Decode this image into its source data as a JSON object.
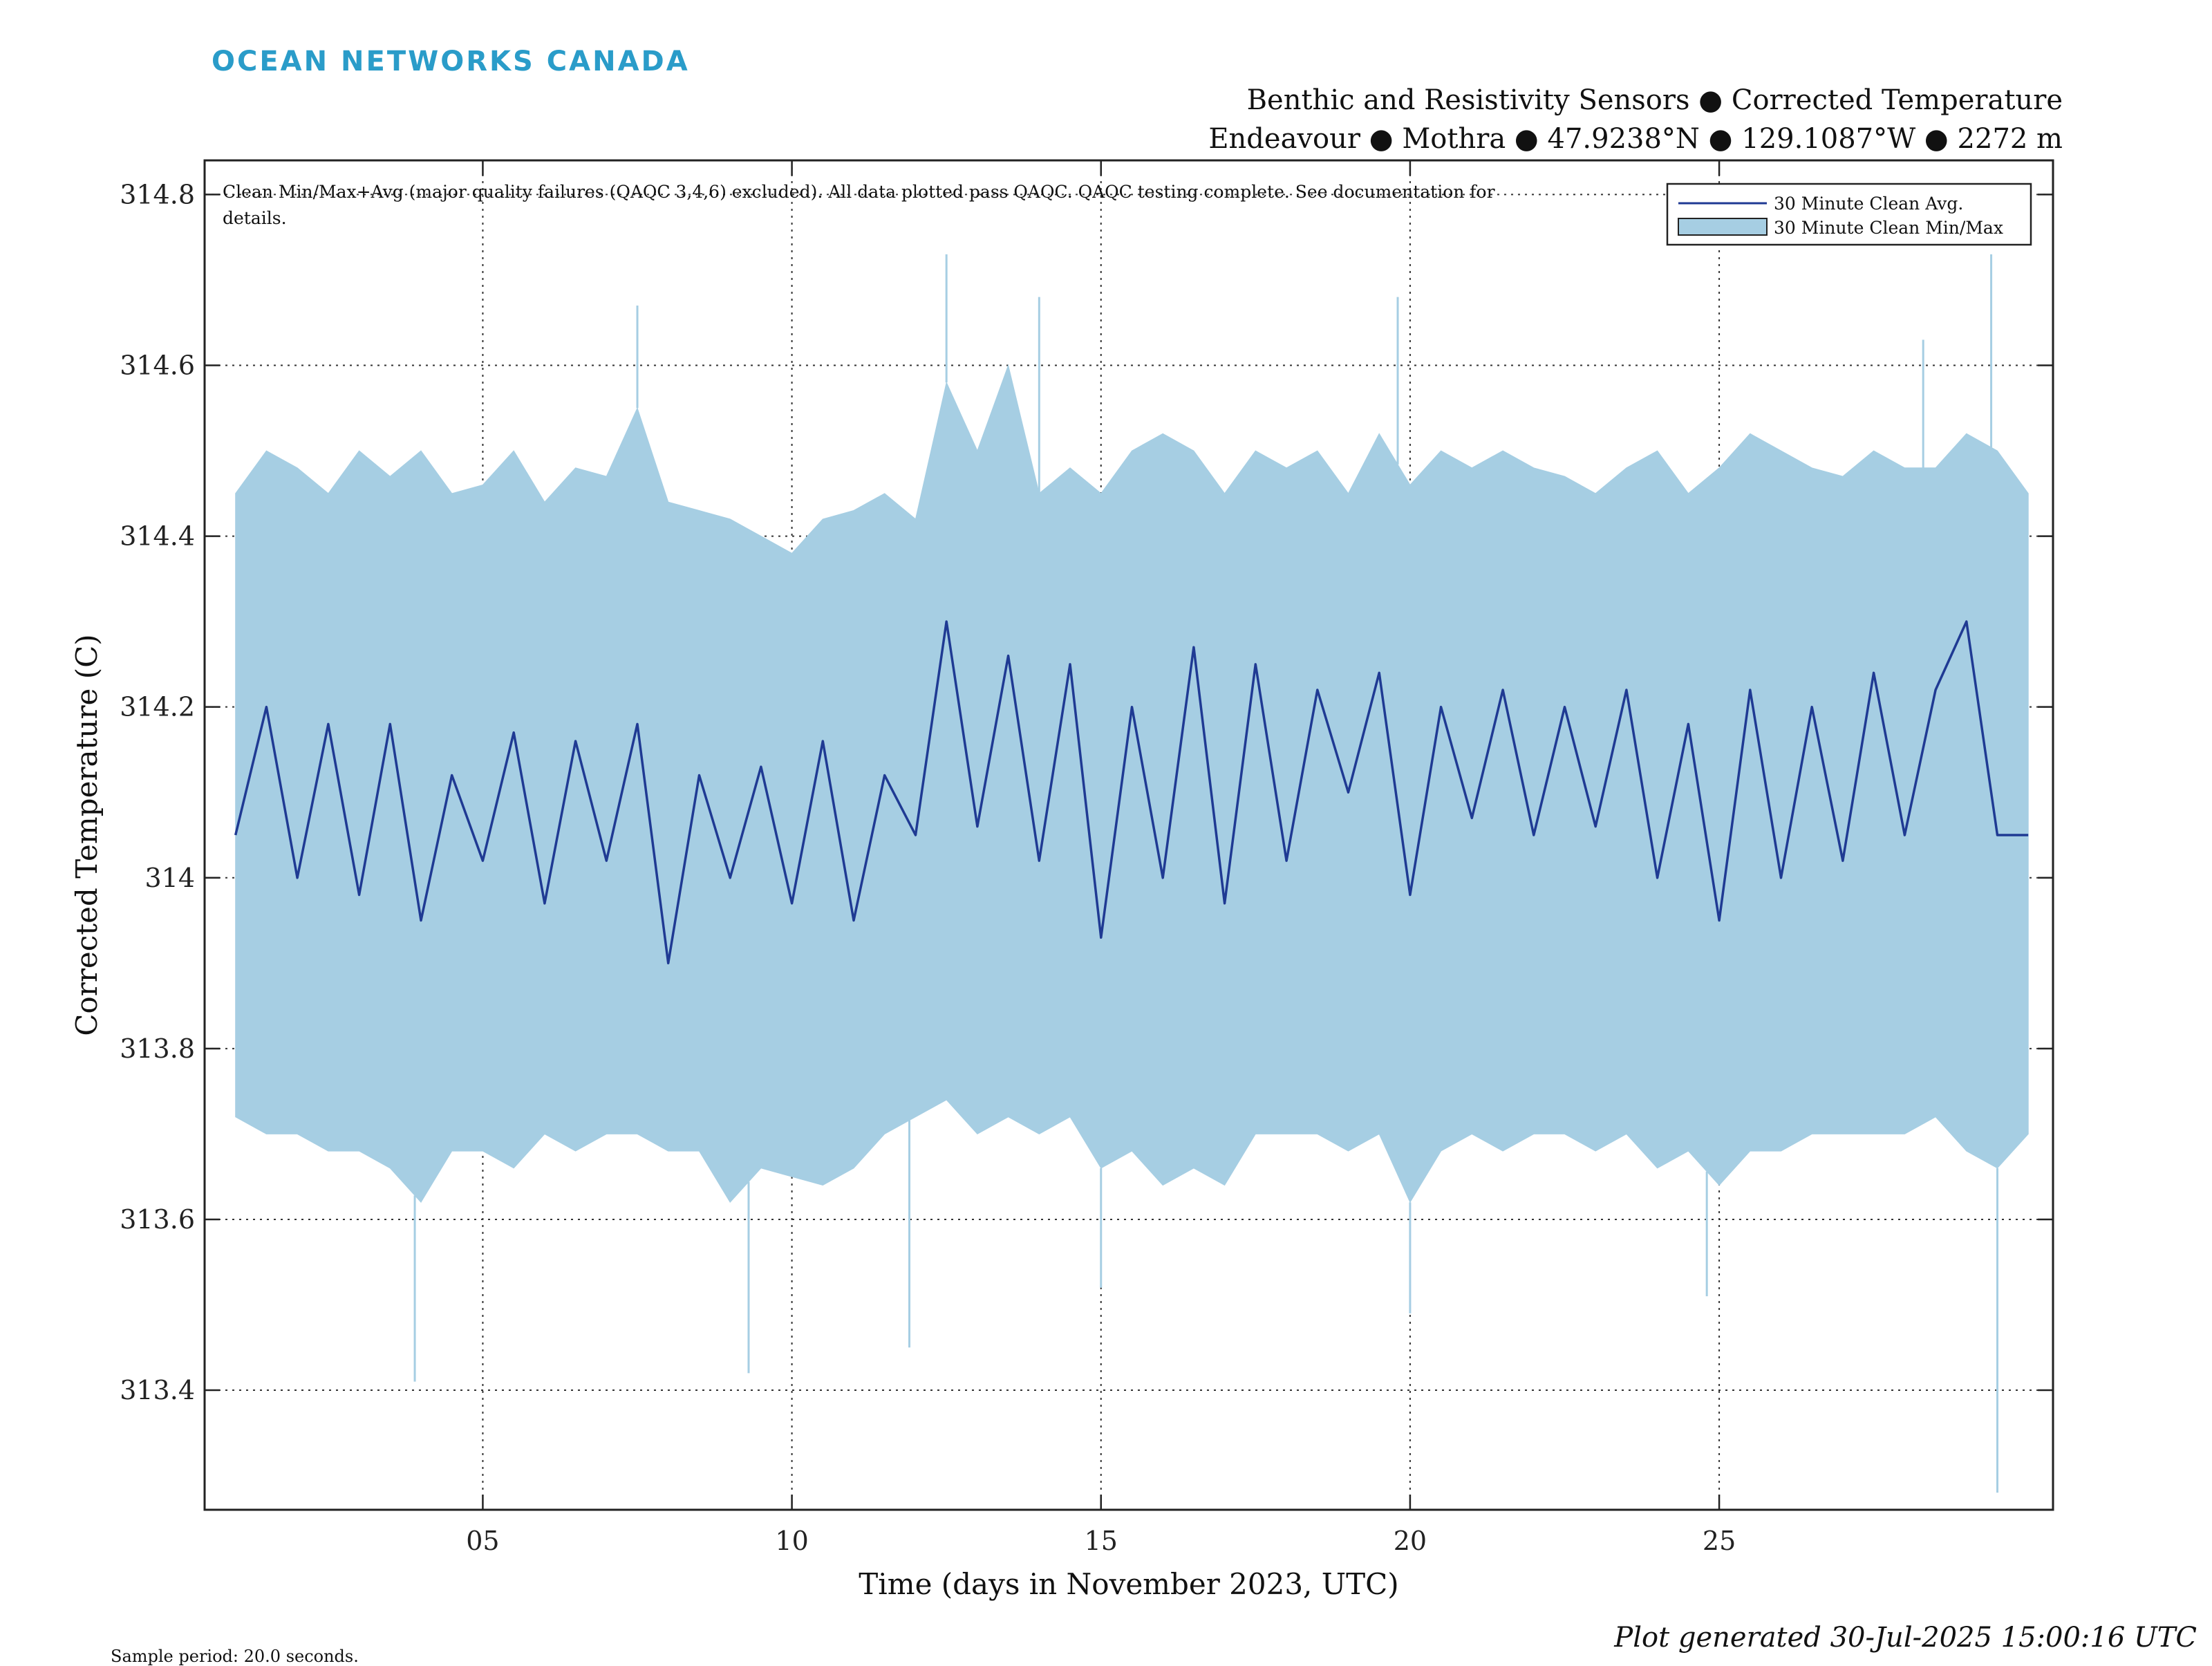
{
  "brand": "OCEAN NETWORKS CANADA",
  "title_line1": "Benthic and Resistivity Sensors ● Corrected Temperature",
  "title_line2": "Endeavour ● Mothra ● 47.9238°N ● 129.1087°W ● 2272 m",
  "footer_left": "Sample period: 20.0 seconds.",
  "footer_right": "Plot generated 30-Jul-2025 15:00:16 UTC",
  "colors": {
    "avg_line": "#1f3a93",
    "minmax_fill": "#a6cee3",
    "brand": "#2a9cc9"
  },
  "chart_data": {
    "type": "area",
    "xlabel": "Time (days in November 2023, UTC)",
    "ylabel": "Corrected Temperature (C)",
    "xlim": [
      0.5,
      30.4
    ],
    "ylim": [
      313.26,
      314.84
    ],
    "x_ticks": [
      5,
      10,
      15,
      20,
      25
    ],
    "x_tick_labels": [
      "05",
      "10",
      "15",
      "20",
      "25"
    ],
    "y_ticks": [
      313.4,
      313.6,
      313.8,
      314,
      314.2,
      314.4,
      314.6,
      314.8
    ],
    "y_tick_labels": [
      "313.4",
      "313.6",
      "313.8",
      "314",
      "314.2",
      "314.4",
      "314.6",
      "314.8"
    ],
    "grid": true,
    "legend_position": "top-right",
    "annotation_line1": "Clean Min/Max+Avg (major quality failures (QAQC 3,4,6) excluded). All data plotted pass QAQC. QAQC testing complete. See documentation for",
    "annotation_line2": "details.",
    "series": [
      {
        "name": "30 Minute Clean Avg.",
        "style": "line",
        "x": [
          1,
          1.5,
          2,
          2.5,
          3,
          3.5,
          4,
          4.5,
          5,
          5.5,
          6,
          6.5,
          7,
          7.5,
          8,
          8.5,
          9,
          9.5,
          10,
          10.5,
          11,
          11.5,
          12,
          12.5,
          13,
          13.5,
          14,
          14.5,
          15,
          15.5,
          16,
          16.5,
          17,
          17.5,
          18,
          18.5,
          19,
          19.5,
          20,
          20.5,
          21,
          21.5,
          22,
          22.5,
          23,
          23.5,
          24,
          24.5,
          25,
          25.5,
          26,
          26.5,
          27,
          27.5,
          28,
          28.5,
          29,
          29.5,
          30
        ],
        "y": [
          314.05,
          314.2,
          314.0,
          314.18,
          313.98,
          314.18,
          313.95,
          314.12,
          314.02,
          314.17,
          313.97,
          314.16,
          314.02,
          314.18,
          313.9,
          314.12,
          314.0,
          314.13,
          313.97,
          314.16,
          313.95,
          314.12,
          314.05,
          314.3,
          314.06,
          314.26,
          314.02,
          314.25,
          313.93,
          314.2,
          314.0,
          314.27,
          313.97,
          314.25,
          314.02,
          314.22,
          314.1,
          314.24,
          313.98,
          314.2,
          314.07,
          314.22,
          314.05,
          314.2,
          314.06,
          314.22,
          314.0,
          314.18,
          313.95,
          314.22,
          314.0,
          314.2,
          314.02,
          314.24,
          314.05,
          314.22,
          314.3,
          314.05,
          314.05
        ]
      },
      {
        "name": "30 Minute Clean Min/Max",
        "style": "band",
        "x": [
          1,
          1.5,
          2,
          2.5,
          3,
          3.5,
          4,
          4.5,
          5,
          5.5,
          6,
          6.5,
          7,
          7.5,
          8,
          8.5,
          9,
          9.5,
          10,
          10.5,
          11,
          11.5,
          12,
          12.5,
          13,
          13.5,
          14,
          14.5,
          15,
          15.5,
          16,
          16.5,
          17,
          17.5,
          18,
          18.5,
          19,
          19.5,
          20,
          20.5,
          21,
          21.5,
          22,
          22.5,
          23,
          23.5,
          24,
          24.5,
          25,
          25.5,
          26,
          26.5,
          27,
          27.5,
          28,
          28.5,
          29,
          29.5,
          30
        ],
        "max": [
          314.45,
          314.5,
          314.48,
          314.45,
          314.5,
          314.47,
          314.5,
          314.45,
          314.46,
          314.5,
          314.44,
          314.48,
          314.47,
          314.55,
          314.44,
          314.43,
          314.42,
          314.4,
          314.38,
          314.42,
          314.43,
          314.45,
          314.42,
          314.58,
          314.5,
          314.6,
          314.45,
          314.48,
          314.45,
          314.5,
          314.52,
          314.5,
          314.45,
          314.5,
          314.48,
          314.5,
          314.45,
          314.52,
          314.46,
          314.5,
          314.48,
          314.5,
          314.48,
          314.47,
          314.45,
          314.48,
          314.5,
          314.45,
          314.48,
          314.52,
          314.5,
          314.48,
          314.47,
          314.5,
          314.48,
          314.48,
          314.52,
          314.5,
          314.45
        ],
        "min": [
          313.72,
          313.7,
          313.7,
          313.68,
          313.68,
          313.66,
          313.62,
          313.68,
          313.68,
          313.66,
          313.7,
          313.68,
          313.7,
          313.7,
          313.68,
          313.68,
          313.62,
          313.66,
          313.65,
          313.64,
          313.66,
          313.7,
          313.72,
          313.74,
          313.7,
          313.72,
          313.7,
          313.72,
          313.66,
          313.68,
          313.64,
          313.66,
          313.64,
          313.7,
          313.7,
          313.7,
          313.68,
          313.7,
          313.62,
          313.68,
          313.7,
          313.68,
          313.7,
          313.7,
          313.68,
          313.7,
          313.66,
          313.68,
          313.64,
          313.68,
          313.68,
          313.7,
          313.7,
          313.7,
          313.7,
          313.72,
          313.68,
          313.66,
          313.7
        ],
        "spike_max": [
          [
            7.5,
            314.67
          ],
          [
            12.5,
            314.73
          ],
          [
            14.0,
            314.68
          ],
          [
            19.8,
            314.68
          ],
          [
            28.3,
            314.63
          ],
          [
            29.4,
            314.73
          ]
        ],
        "spike_min": [
          [
            3.9,
            313.41
          ],
          [
            9.3,
            313.42
          ],
          [
            11.9,
            313.45
          ],
          [
            15.0,
            313.52
          ],
          [
            20.0,
            313.49
          ],
          [
            24.8,
            313.51
          ],
          [
            29.5,
            313.28
          ]
        ]
      }
    ]
  }
}
